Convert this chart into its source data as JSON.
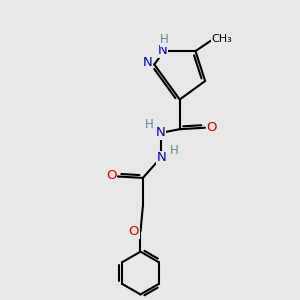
{
  "bg_color": "#e8e8e8",
  "bond_color": "#000000",
  "bond_width": 1.5,
  "atom_colors": {
    "C": "#000000",
    "N": "#0000cc",
    "O": "#cc0000",
    "H": "#5c8a8a"
  },
  "font_size": 9.5,
  "font_size_h": 8.5
}
